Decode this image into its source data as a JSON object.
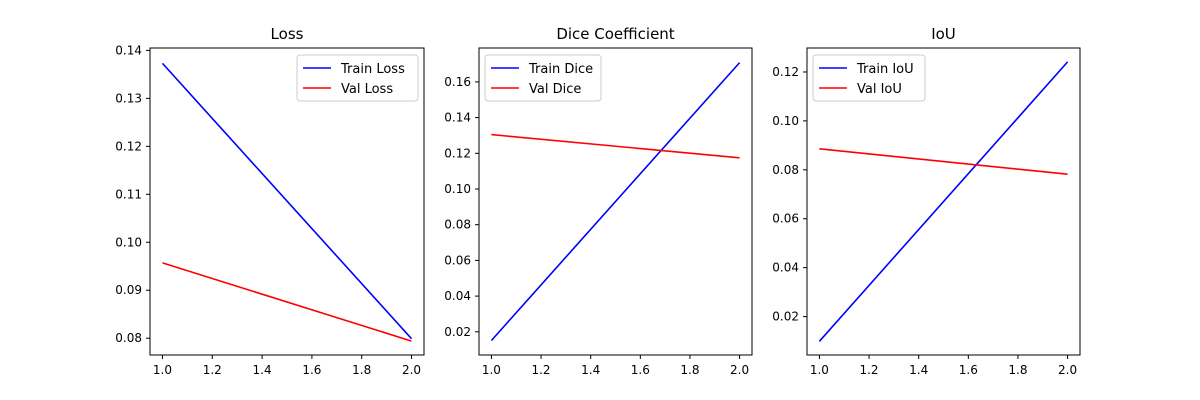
{
  "chart_data": [
    {
      "type": "line",
      "title": "Loss",
      "xlabel": "",
      "ylabel": "",
      "xlim": [
        0.95,
        2.05
      ],
      "ylim": [
        0.0765,
        0.1405
      ],
      "xticks": [
        1.0,
        1.2,
        1.4,
        1.6,
        1.8,
        2.0
      ],
      "xtick_labels": [
        "1.0",
        "1.2",
        "1.4",
        "1.6",
        "1.8",
        "2.0"
      ],
      "yticks": [
        0.08,
        0.09,
        0.1,
        0.11,
        0.12,
        0.13,
        0.14
      ],
      "ytick_labels": [
        "0.08",
        "0.09",
        "0.10",
        "0.11",
        "0.12",
        "0.13",
        "0.14"
      ],
      "grid": false,
      "legend_position": "top-right",
      "series": [
        {
          "name": "Train Loss",
          "color": "#0000ff",
          "x": [
            1,
            2
          ],
          "y": [
            0.1373,
            0.0799
          ]
        },
        {
          "name": "Val Loss",
          "color": "#ff0000",
          "x": [
            1,
            2
          ],
          "y": [
            0.0957,
            0.0794
          ]
        }
      ]
    },
    {
      "type": "line",
      "title": "Dice Coefficient",
      "xlabel": "",
      "ylabel": "",
      "xlim": [
        0.95,
        2.05
      ],
      "ylim": [
        0.007,
        0.179
      ],
      "xticks": [
        1.0,
        1.2,
        1.4,
        1.6,
        1.8,
        2.0
      ],
      "xtick_labels": [
        "1.0",
        "1.2",
        "1.4",
        "1.6",
        "1.8",
        "2.0"
      ],
      "yticks": [
        0.02,
        0.04,
        0.06,
        0.08,
        0.1,
        0.12,
        0.14,
        0.16
      ],
      "ytick_labels": [
        "0.02",
        "0.04",
        "0.06",
        "0.08",
        "0.10",
        "0.12",
        "0.14",
        "0.16"
      ],
      "grid": false,
      "legend_position": "top-left",
      "series": [
        {
          "name": "Train Dice",
          "color": "#0000ff",
          "x": [
            1,
            2
          ],
          "y": [
            0.0151,
            0.1708
          ]
        },
        {
          "name": "Val Dice",
          "color": "#ff0000",
          "x": [
            1,
            2
          ],
          "y": [
            0.1305,
            0.1175
          ]
        }
      ]
    },
    {
      "type": "line",
      "title": "IoU",
      "xlabel": "",
      "ylabel": "",
      "xlim": [
        0.95,
        2.05
      ],
      "ylim": [
        0.0043,
        0.1298
      ],
      "xticks": [
        1.0,
        1.2,
        1.4,
        1.6,
        1.8,
        2.0
      ],
      "xtick_labels": [
        "1.0",
        "1.2",
        "1.4",
        "1.6",
        "1.8",
        "2.0"
      ],
      "yticks": [
        0.02,
        0.04,
        0.06,
        0.08,
        0.1,
        0.12
      ],
      "ytick_labels": [
        "0.02",
        "0.04",
        "0.06",
        "0.08",
        "0.10",
        "0.12"
      ],
      "grid": false,
      "legend_position": "top-left",
      "series": [
        {
          "name": "Train IoU",
          "color": "#0000ff",
          "x": [
            1,
            2
          ],
          "y": [
            0.0099,
            0.1241
          ]
        },
        {
          "name": "Val IoU",
          "color": "#ff0000",
          "x": [
            1,
            2
          ],
          "y": [
            0.0886,
            0.0782
          ]
        }
      ]
    }
  ]
}
